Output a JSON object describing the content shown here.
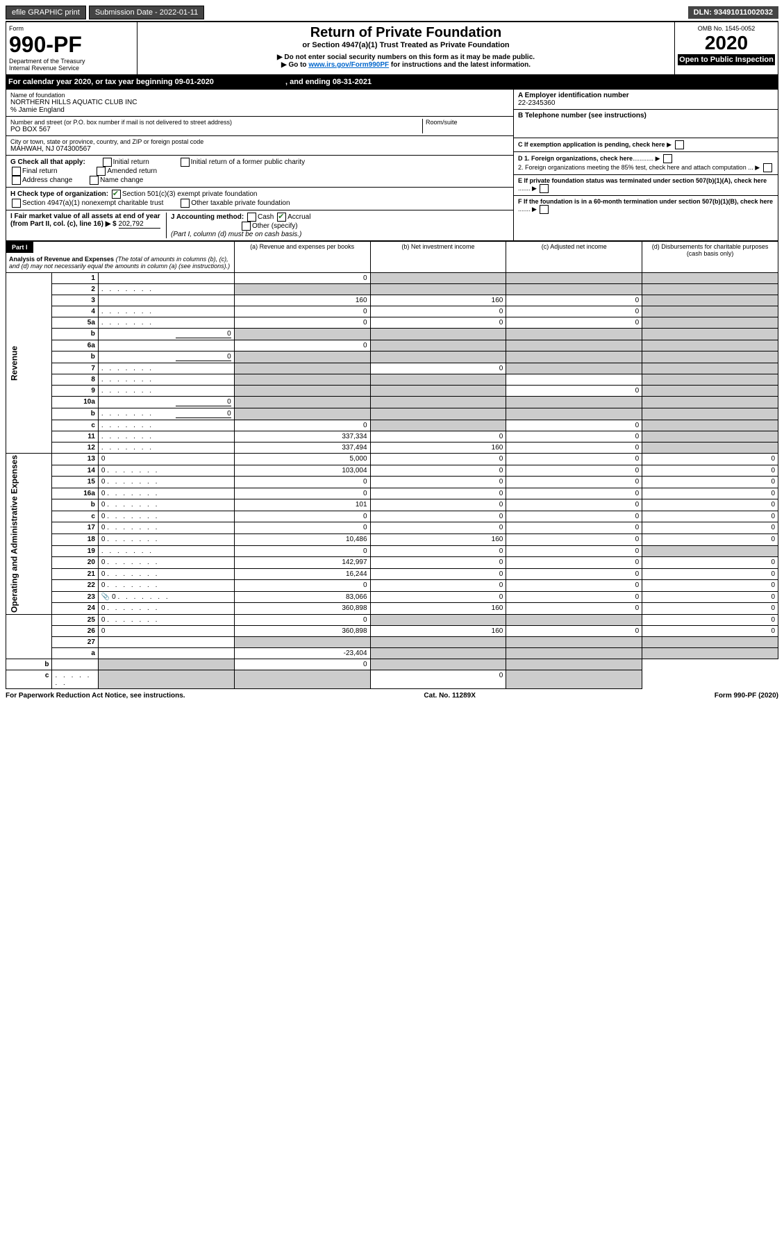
{
  "top": {
    "efile": "efile GRAPHIC print",
    "sub_date_label": "Submission Date - ",
    "sub_date": "2022-01-11",
    "dln_label": "DLN: ",
    "dln": "93491011002032"
  },
  "header": {
    "form_word": "Form",
    "form_num": "990-PF",
    "dept": "Department of the Treasury",
    "irs": "Internal Revenue Service",
    "title": "Return of Private Foundation",
    "subtitle": "or Section 4947(a)(1) Trust Treated as Private Foundation",
    "note1": "▶ Do not enter social security numbers on this form as it may be made public.",
    "note2_pre": "▶ Go to ",
    "note2_link": "www.irs.gov/Form990PF",
    "note2_post": " for instructions and the latest information.",
    "omb": "OMB No. 1545-0052",
    "year": "2020",
    "open": "Open to Public Inspection"
  },
  "cal": {
    "text_pre": "For calendar year 2020, or tax year beginning ",
    "begin": "09-01-2020",
    "mid": ", and ending ",
    "end": "08-31-2021"
  },
  "name": {
    "label": "Name of foundation",
    "value": "NORTHERN HILLS AQUATIC CLUB INC",
    "care": "% Jamie England"
  },
  "addr": {
    "label": "Number and street (or P.O. box number if mail is not delivered to street address)",
    "value": "PO BOX 567",
    "room_label": "Room/suite"
  },
  "city": {
    "label": "City or town, state or province, country, and ZIP or foreign postal code",
    "value": "MAHWAH, NJ  074300567"
  },
  "g": {
    "label": "G Check all that apply:",
    "o1": "Initial return",
    "o2": "Final return",
    "o3": "Address change",
    "o4": "Initial return of a former public charity",
    "o5": "Amended return",
    "o6": "Name change"
  },
  "h": {
    "label": "H Check type of organization:",
    "o1": "Section 501(c)(3) exempt private foundation",
    "o2": "Section 4947(a)(1) nonexempt charitable trust",
    "o3": "Other taxable private foundation"
  },
  "i": {
    "label": "I Fair market value of all assets at end of year (from Part II, col. (c), line 16) ▶ $",
    "value": "202,792"
  },
  "j": {
    "label": "J Accounting method:",
    "cash": "Cash",
    "accrual": "Accrual",
    "other": "Other (specify)",
    "note": "(Part I, column (d) must be on cash basis.)"
  },
  "right": {
    "a_label": "A Employer identification number",
    "a_value": "22-2345360",
    "b_label": "B Telephone number (see instructions)",
    "c_label": "C If exemption application is pending, check here",
    "d1": "D 1. Foreign organizations, check here",
    "d2": "2. Foreign organizations meeting the 85% test, check here and attach computation",
    "e": "E If private foundation status was terminated under section 507(b)(1)(A), check here",
    "f": "F If the foundation is in a 60-month termination under section 507(b)(1)(B), check here"
  },
  "part1": {
    "label": "Part I",
    "title": "Analysis of Revenue and Expenses",
    "subtitle": "(The total of amounts in columns (b), (c), and (d) may not necessarily equal the amounts in column (a) (see instructions).)",
    "col_a": "(a) Revenue and expenses per books",
    "col_b": "(b) Net investment income",
    "col_c": "(c) Adjusted net income",
    "col_d": "(d) Disbursements for charitable purposes (cash basis only)"
  },
  "sections": {
    "revenue": "Revenue",
    "expenses": "Operating and Administrative Expenses"
  },
  "rows": [
    {
      "n": "1",
      "d": "",
      "a": "0",
      "b": "",
      "c": "",
      "sb": true,
      "sc": true,
      "sd": true
    },
    {
      "n": "2",
      "d": "",
      "dots": true,
      "a": "",
      "b": "",
      "c": "",
      "sa": true,
      "sb": true,
      "sc": true,
      "sd": true
    },
    {
      "n": "3",
      "d": "",
      "a": "160",
      "b": "160",
      "c": "0",
      "sd": true
    },
    {
      "n": "4",
      "d": "",
      "dots": true,
      "a": "0",
      "b": "0",
      "c": "0",
      "sd": true
    },
    {
      "n": "5a",
      "d": "",
      "dots": true,
      "a": "0",
      "b": "0",
      "c": "0",
      "sd": true
    },
    {
      "n": "b",
      "d": "",
      "inline": "0",
      "a": "",
      "b": "",
      "c": "",
      "sa": true,
      "sb": true,
      "sc": true,
      "sd": true
    },
    {
      "n": "6a",
      "d": "",
      "a": "0",
      "b": "",
      "c": "",
      "sb": true,
      "sc": true,
      "sd": true
    },
    {
      "n": "b",
      "d": "",
      "inline": "0",
      "a": "",
      "b": "",
      "c": "",
      "sa": true,
      "sb": true,
      "sc": true,
      "sd": true
    },
    {
      "n": "7",
      "d": "",
      "dots": true,
      "a": "",
      "b": "0",
      "c": "",
      "sa": true,
      "sc": true,
      "sd": true
    },
    {
      "n": "8",
      "d": "",
      "dots": true,
      "a": "",
      "b": "",
      "c": "",
      "sa": true,
      "sb": true,
      "sd": true
    },
    {
      "n": "9",
      "d": "",
      "dots": true,
      "a": "",
      "b": "",
      "c": "0",
      "sa": true,
      "sb": true,
      "sd": true
    },
    {
      "n": "10a",
      "d": "",
      "inline": "0",
      "a": "",
      "b": "",
      "c": "",
      "sa": true,
      "sb": true,
      "sc": true,
      "sd": true
    },
    {
      "n": "b",
      "d": "",
      "dots": true,
      "inline": "0",
      "a": "",
      "b": "",
      "c": "",
      "sa": true,
      "sb": true,
      "sc": true,
      "sd": true
    },
    {
      "n": "c",
      "d": "",
      "dots": true,
      "a": "0",
      "b": "",
      "c": "0",
      "sb": true,
      "sd": true
    },
    {
      "n": "11",
      "d": "",
      "dots": true,
      "a": "337,334",
      "b": "0",
      "c": "0",
      "sd": true
    },
    {
      "n": "12",
      "d": "",
      "dots": true,
      "a": "337,494",
      "b": "160",
      "c": "0",
      "sd": true
    },
    {
      "n": "13",
      "d": "0",
      "a": "5,000",
      "b": "0",
      "c": "0"
    },
    {
      "n": "14",
      "d": "0",
      "dots": true,
      "a": "103,004",
      "b": "0",
      "c": "0"
    },
    {
      "n": "15",
      "d": "0",
      "dots": true,
      "a": "0",
      "b": "0",
      "c": "0"
    },
    {
      "n": "16a",
      "d": "0",
      "dots": true,
      "a": "0",
      "b": "0",
      "c": "0"
    },
    {
      "n": "b",
      "d": "0",
      "dots": true,
      "a": "101",
      "b": "0",
      "c": "0"
    },
    {
      "n": "c",
      "d": "0",
      "dots": true,
      "a": "0",
      "b": "0",
      "c": "0"
    },
    {
      "n": "17",
      "d": "0",
      "dots": true,
      "a": "0",
      "b": "0",
      "c": "0"
    },
    {
      "n": "18",
      "d": "0",
      "dots": true,
      "a": "10,486",
      "b": "160",
      "c": "0"
    },
    {
      "n": "19",
      "d": "",
      "dots": true,
      "a": "0",
      "b": "0",
      "c": "0",
      "sd": true
    },
    {
      "n": "20",
      "d": "0",
      "dots": true,
      "a": "142,997",
      "b": "0",
      "c": "0"
    },
    {
      "n": "21",
      "d": "0",
      "dots": true,
      "a": "16,244",
      "b": "0",
      "c": "0"
    },
    {
      "n": "22",
      "d": "0",
      "dots": true,
      "a": "0",
      "b": "0",
      "c": "0"
    },
    {
      "n": "23",
      "d": "0",
      "dots": true,
      "icon": true,
      "a": "83,066",
      "b": "0",
      "c": "0"
    },
    {
      "n": "24",
      "d": "0",
      "dots": true,
      "a": "360,898",
      "b": "160",
      "c": "0"
    },
    {
      "n": "25",
      "d": "0",
      "dots": true,
      "a": "0",
      "b": "",
      "c": "",
      "sb": true,
      "sc": true
    },
    {
      "n": "26",
      "d": "0",
      "a": "360,898",
      "b": "160",
      "c": "0"
    },
    {
      "n": "27",
      "d": "",
      "a": "",
      "b": "",
      "c": "",
      "sa": true,
      "sb": true,
      "sc": true,
      "sd": true
    },
    {
      "n": "a",
      "d": "",
      "a": "-23,404",
      "b": "",
      "c": "",
      "sb": true,
      "sc": true,
      "sd": true
    },
    {
      "n": "b",
      "d": "",
      "a": "",
      "b": "0",
      "c": "",
      "sa": true,
      "sc": true,
      "sd": true
    },
    {
      "n": "c",
      "d": "",
      "dots": true,
      "a": "",
      "b": "",
      "c": "0",
      "sa": true,
      "sb": true,
      "sd": true
    }
  ],
  "footer": {
    "left": "For Paperwork Reduction Act Notice, see instructions.",
    "mid": "Cat. No. 11289X",
    "right": "Form 990-PF (2020)"
  }
}
